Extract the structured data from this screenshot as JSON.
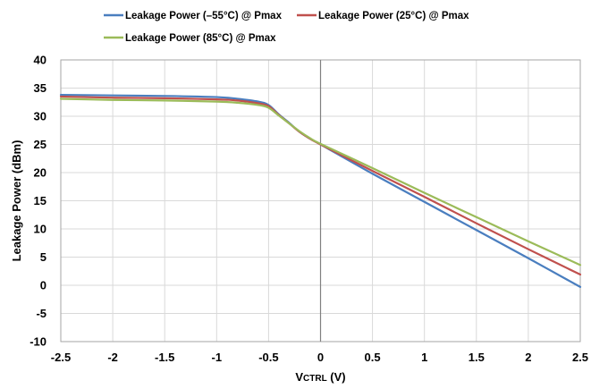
{
  "chart_data": {
    "type": "line",
    "xlabel_main": "V",
    "xlabel_sub": "CTRL",
    "xlabel_unit": " (V)",
    "ylabel": "Leakage Power (dBm)",
    "xlim": [
      -2.5,
      2.5
    ],
    "ylim": [
      -10,
      40
    ],
    "xticks": [
      -2.5,
      -2,
      -1.5,
      -1,
      -0.5,
      0,
      0.5,
      1,
      1.5,
      2,
      2.5
    ],
    "yticks": [
      -10,
      -5,
      0,
      5,
      10,
      15,
      20,
      25,
      30,
      35,
      40
    ],
    "grid": true,
    "legend_position": "top",
    "series": [
      {
        "name": "Leakage Power (–55°C) @ Pmax",
        "color": "#4a7ebf",
        "x": [
          -2.5,
          -2,
          -1.5,
          -1,
          -0.8,
          -0.6,
          -0.5,
          -0.4,
          -0.3,
          -0.2,
          -0.1,
          0,
          0.5,
          1,
          1.5,
          2,
          2.5
        ],
        "y": [
          33.8,
          33.7,
          33.6,
          33.4,
          33.1,
          32.6,
          32.0,
          30.3,
          28.8,
          27.2,
          26.0,
          25.0,
          19.8,
          14.8,
          9.8,
          4.8,
          -0.3
        ]
      },
      {
        "name": "Leakage Power (25°C) @ Pmax",
        "color": "#c0504d",
        "x": [
          -2.5,
          -2,
          -1.5,
          -1,
          -0.8,
          -0.6,
          -0.5,
          -0.4,
          -0.3,
          -0.2,
          -0.1,
          0,
          0.5,
          1,
          1.5,
          2,
          2.5
        ],
        "y": [
          33.5,
          33.3,
          33.2,
          33.0,
          32.8,
          32.3,
          31.8,
          30.2,
          28.7,
          27.2,
          26.0,
          25.0,
          20.3,
          15.7,
          11.0,
          6.4,
          1.9
        ]
      },
      {
        "name": "Leakage Power (85°C) @ Pmax",
        "color": "#9bbb59",
        "x": [
          -2.5,
          -2,
          -1.5,
          -1,
          -0.8,
          -0.6,
          -0.5,
          -0.4,
          -0.3,
          -0.2,
          -0.1,
          0,
          0.5,
          1,
          1.5,
          2,
          2.5
        ],
        "y": [
          33.1,
          32.9,
          32.8,
          32.6,
          32.4,
          32.0,
          31.5,
          30.1,
          28.7,
          27.3,
          26.1,
          25.1,
          20.8,
          16.4,
          12.1,
          7.8,
          3.6
        ]
      }
    ]
  }
}
